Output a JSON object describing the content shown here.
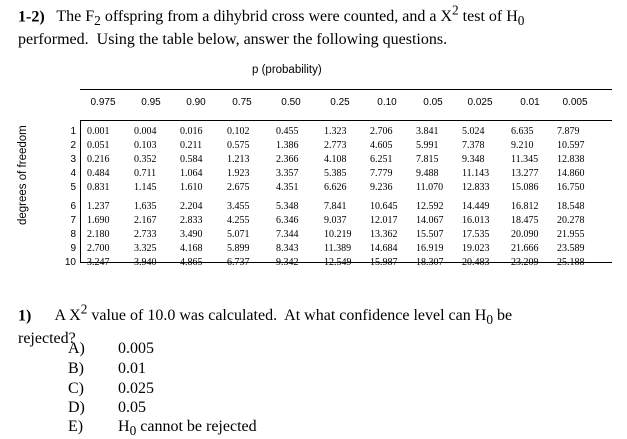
{
  "header": {
    "number": "1-2)",
    "text_html": "The F<sub>2</sub> offspring from a dihybrid cross were counted, and a X<sup>2</sup> test of H<sub>0</sub><br>performed.&nbsp; Using the table below, answer the following questions."
  },
  "table": {
    "title": "p (probability)",
    "ylabel": "degrees of freedom",
    "columns": [
      "0.975",
      "0.95",
      "0.90",
      "0.75",
      "0.50",
      "0.25",
      "0.10",
      "0.05",
      "0.025",
      "0.01",
      "0.005"
    ],
    "df": [
      "1",
      "2",
      "3",
      "4",
      "5",
      "6",
      "7",
      "8",
      "9",
      "10"
    ],
    "rows": [
      [
        "0.001",
        "0.004",
        "0.016",
        "0.102",
        "0.455",
        "1.323",
        "2.706",
        "3.841",
        "5.024",
        "6.635",
        "7.879"
      ],
      [
        "0.051",
        "0.103",
        "0.211",
        "0.575",
        "1.386",
        "2.773",
        "4.605",
        "5.991",
        "7.378",
        "9.210",
        "10.597"
      ],
      [
        "0.216",
        "0.352",
        "0.584",
        "1.213",
        "2.366",
        "4.108",
        "6.251",
        "7.815",
        "9.348",
        "11.345",
        "12.838"
      ],
      [
        "0.484",
        "0.711",
        "1.064",
        "1.923",
        "3.357",
        "5.385",
        "7.779",
        "9.488",
        "11.143",
        "13.277",
        "14.860"
      ],
      [
        "0.831",
        "1.145",
        "1.610",
        "2.675",
        "4.351",
        "6.626",
        "9.236",
        "11.070",
        "12.833",
        "15.086",
        "16.750"
      ],
      [
        "1.237",
        "1.635",
        "2.204",
        "3.455",
        "5.348",
        "7.841",
        "10.645",
        "12.592",
        "14.449",
        "16.812",
        "18.548"
      ],
      [
        "1.690",
        "2.167",
        "2.833",
        "4.255",
        "6.346",
        "9.037",
        "12.017",
        "14.067",
        "16.013",
        "18.475",
        "20.278"
      ],
      [
        "2.180",
        "2.733",
        "3.490",
        "5.071",
        "7.344",
        "10.219",
        "13.362",
        "15.507",
        "17.535",
        "20.090",
        "21.955"
      ],
      [
        "2.700",
        "3.325",
        "4.168",
        "5.899",
        "8.343",
        "11.389",
        "14.684",
        "16.919",
        "19.023",
        "21.666",
        "23.589"
      ],
      [
        "3.247",
        "3.940",
        "4.865",
        "6.737",
        "9.342",
        "12.549",
        "15.987",
        "18.307",
        "20.483",
        "23.209",
        "25.188"
      ]
    ]
  },
  "question": {
    "number": "1)",
    "text_html": "A X<sup>2</sup> value of 10.0 was calculated.&nbsp; At what confidence level can H<sub>0</sub> be<br>rejected?"
  },
  "options": [
    {
      "letter": "A)",
      "text_html": "0.005"
    },
    {
      "letter": "B)",
      "text_html": "0.01"
    },
    {
      "letter": "C)",
      "text_html": "0.025"
    },
    {
      "letter": "D)",
      "text_html": "0.05"
    },
    {
      "letter": "E)",
      "text_html": "H<sub>0</sub> cannot be rejected"
    }
  ]
}
